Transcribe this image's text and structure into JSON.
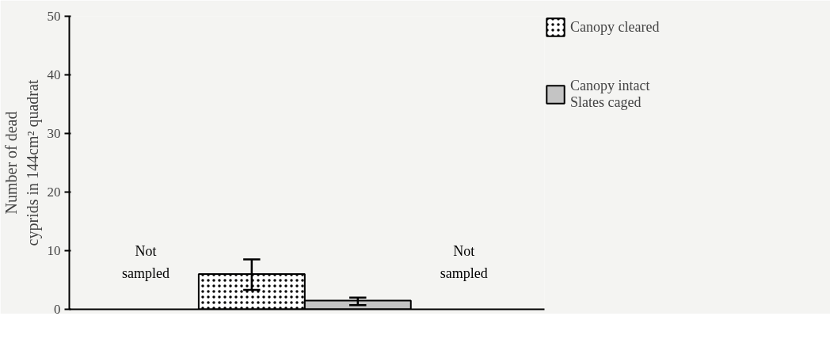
{
  "chart_data": {
    "type": "bar",
    "ylabel": "Number of dead\ncyprids in 144cm² quadrat",
    "categories": [
      null,
      null,
      null,
      null
    ],
    "series": [
      {
        "name": "Canopy cleared",
        "color": "#ffffff",
        "values": [
          null,
          6,
          null,
          null
        ],
        "errors": [
          null,
          [
            3.3,
            8.5
          ],
          null,
          null
        ]
      },
      {
        "name": "Canopy intact\nSlates caged",
        "color": "#c4c4c4",
        "values": [
          null,
          null,
          1.5,
          null
        ],
        "errors": [
          null,
          null,
          [
            0.7,
            2.0
          ],
          null
        ]
      }
    ],
    "annotations": [
      "Not\nsampled",
      "Not\nsampled"
    ],
    "ylim": [
      0,
      50
    ],
    "yticks": [
      0,
      10,
      20,
      30,
      40,
      50
    ],
    "grid": false,
    "legend": "right"
  }
}
